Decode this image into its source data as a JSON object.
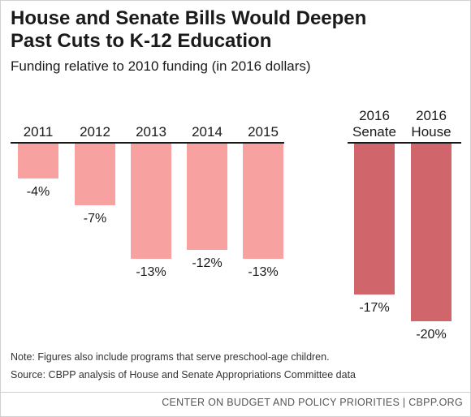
{
  "title_line1": "House and Senate Bills Would Deepen",
  "title_line2": "Past Cuts to K-12 Education",
  "subtitle": "Funding relative to 2010 funding (in 2016 dollars)",
  "note": "Note: Figures also include programs that serve preschool-age children.",
  "source": "Source: CBPP analysis of House and Senate Appropriations Committee data",
  "footer": "CENTER ON BUDGET AND POLICY PRIORITIES | CBPP.ORG",
  "colors": {
    "historical": "#f7a1a1",
    "proposed": "#d0666b",
    "baseline": "#1a1a1a"
  },
  "chart_data": {
    "type": "bar",
    "categories": [
      "2011",
      "2012",
      "2013",
      "2014",
      "2015",
      "2016 Senate",
      "2016 House"
    ],
    "category_lines": [
      [
        "2011"
      ],
      [
        "2012"
      ],
      [
        "2013"
      ],
      [
        "2014"
      ],
      [
        "2015"
      ],
      [
        "2016",
        "Senate"
      ],
      [
        "2016",
        "House"
      ]
    ],
    "values": [
      -4,
      -7,
      -13,
      -12,
      -13,
      -17,
      -20
    ],
    "value_labels": [
      "-4%",
      "-7%",
      "-13%",
      "-12%",
      "-13%",
      "-17%",
      "-20%"
    ],
    "groups": [
      {
        "name": "historical",
        "indices": [
          0,
          1,
          2,
          3,
          4
        ]
      },
      {
        "name": "proposed",
        "indices": [
          5,
          6
        ]
      }
    ],
    "ylim": [
      -20,
      0
    ],
    "title": "House and Senate Bills Would Deepen Past Cuts to K-12 Education",
    "subtitle": "Funding relative to 2010 funding (in 2016 dollars)",
    "xlabel": "",
    "ylabel": "",
    "grid": false,
    "legend": "none"
  }
}
